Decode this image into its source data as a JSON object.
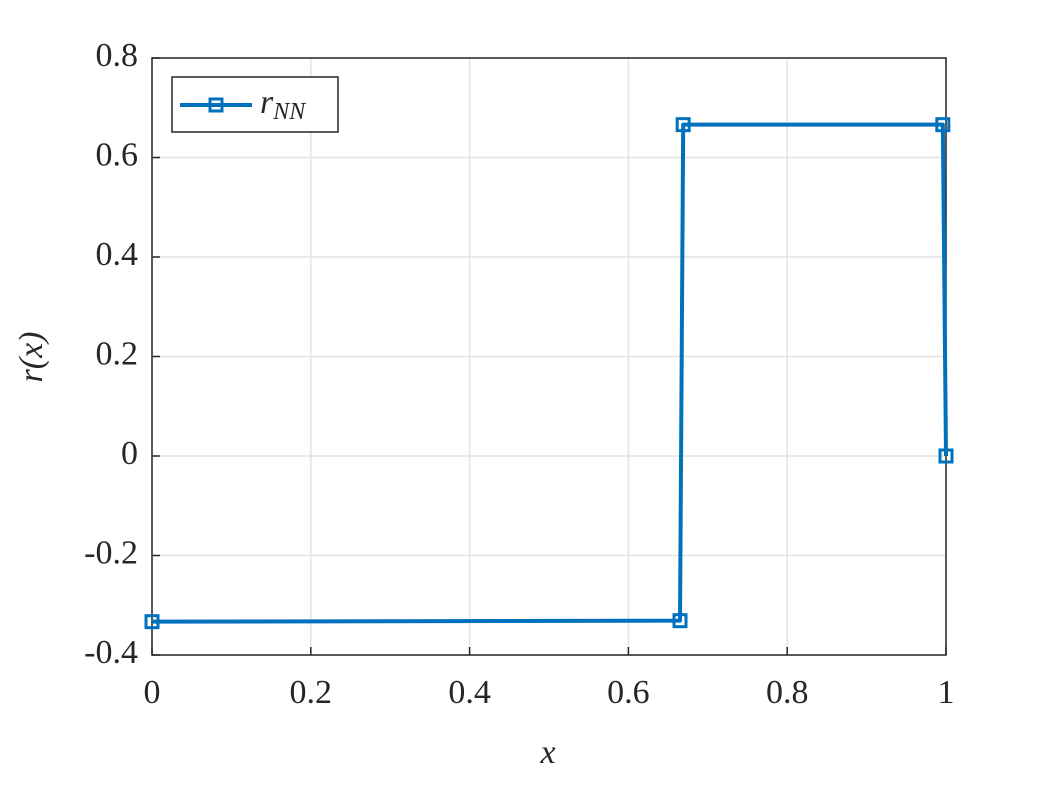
{
  "chart_data": {
    "type": "line",
    "x_label": "x",
    "y_label": "r(x)",
    "xlim": [
      0,
      1
    ],
    "xticks": [
      0,
      0.2,
      0.4,
      0.6,
      0.8,
      1
    ],
    "ylim": [
      -0.4,
      0.8
    ],
    "yticks": [
      -0.4,
      -0.2,
      0,
      0.2,
      0.4,
      0.6,
      0.8
    ],
    "grid": true,
    "legend": "upper left",
    "series": [
      {
        "name": "rNN",
        "color": "#0072bd",
        "x": [
          0,
          0.665,
          0.669,
          0.996,
          1
        ],
        "values": [
          -0.333,
          -0.331,
          0.666,
          0.666,
          0
        ]
      }
    ]
  }
}
